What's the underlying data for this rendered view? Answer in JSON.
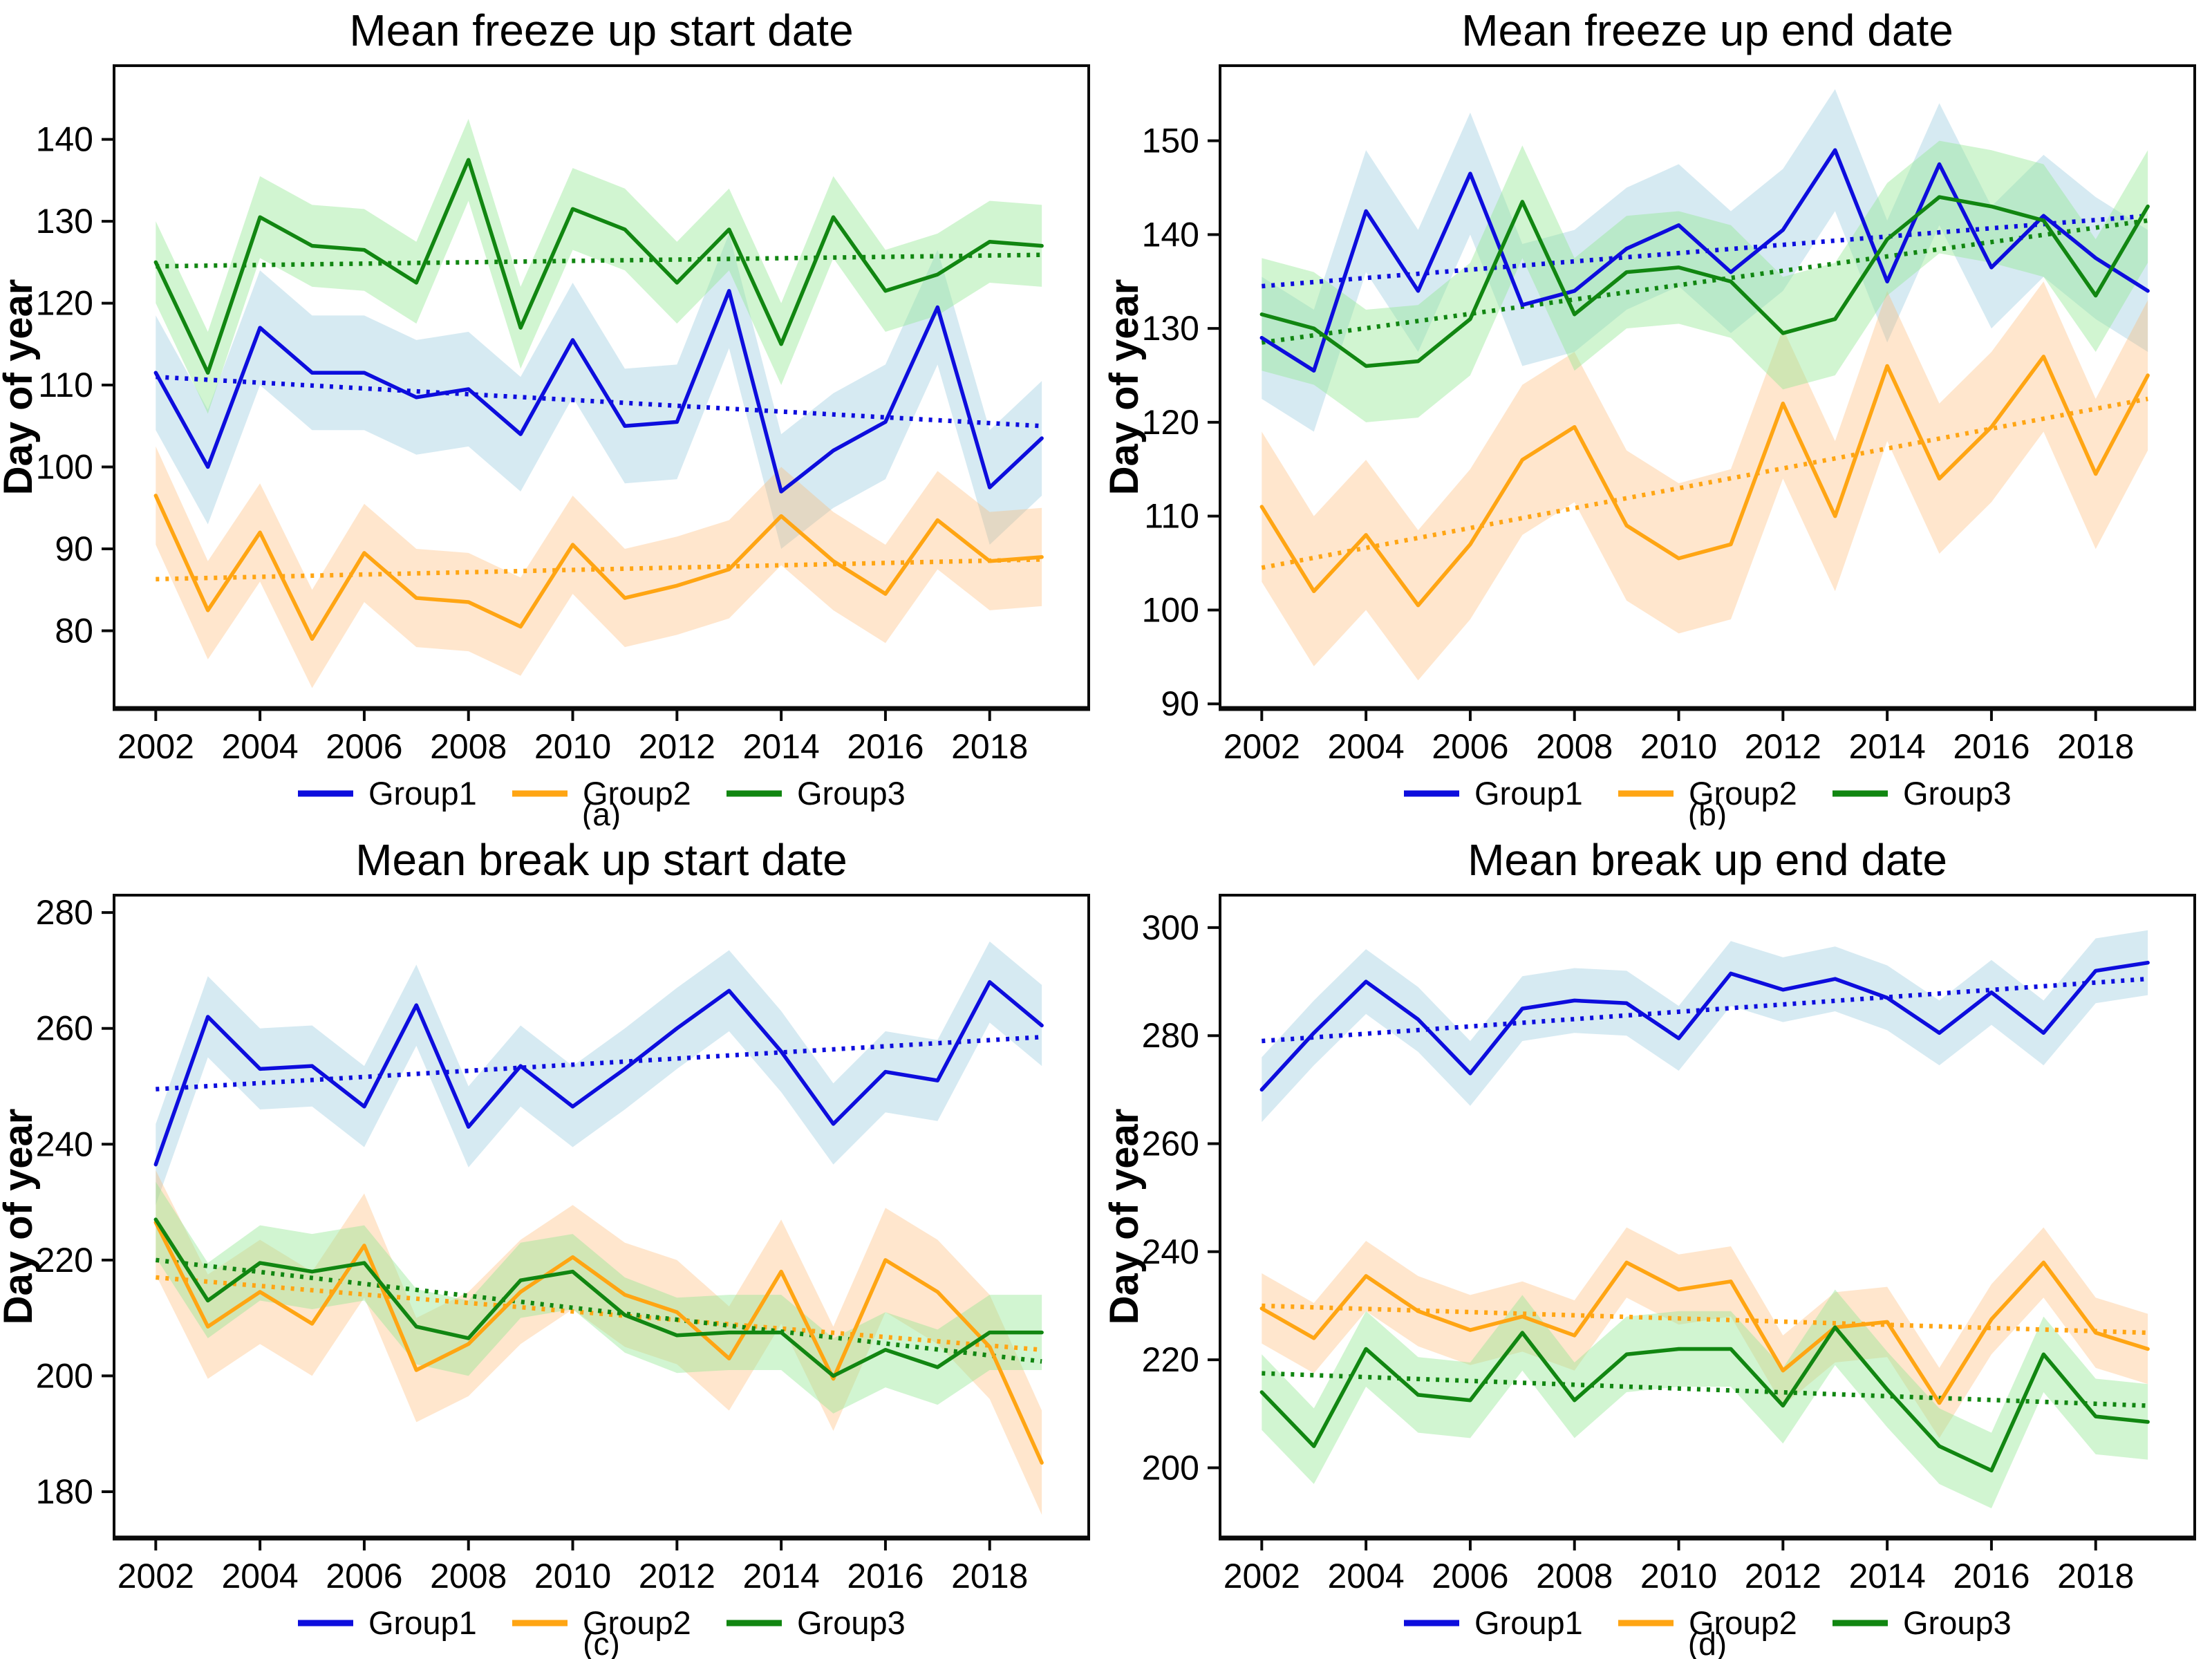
{
  "figure": {
    "background": "#ffffff",
    "ylabel": "Day of year",
    "legend_labels": [
      "Group1",
      "Group2",
      "Group3"
    ],
    "colors": {
      "group1": "#0d0ddd",
      "group2": "#ffa513",
      "group3": "#118611",
      "axis": "#0a0a0a",
      "band1": "rgba(173,214,230,0.50)",
      "band2": "rgba(255,178,102,0.33)",
      "band3": "rgba(146,230,146,0.42)"
    }
  },
  "chart_data": [
    {
      "id": "a",
      "type": "line",
      "title": "Mean freeze up start date",
      "caption": "(a)",
      "ylabel": "Day of year",
      "legend_position": "bottom",
      "grid": false,
      "x": [
        2002,
        2003,
        2004,
        2005,
        2006,
        2007,
        2008,
        2009,
        2010,
        2011,
        2012,
        2013,
        2014,
        2015,
        2016,
        2017,
        2018,
        2019
      ],
      "xticks": [
        2002,
        2004,
        2006,
        2008,
        2010,
        2012,
        2014,
        2016,
        2018
      ],
      "xlim": [
        2001.2,
        2019.9
      ],
      "yticks": [
        80,
        90,
        100,
        110,
        120,
        130,
        140
      ],
      "ylim": [
        70.5,
        149
      ],
      "series": [
        {
          "name": "Group1",
          "color": "#0d0ddd",
          "band_color": "rgba(173,214,230,0.50)",
          "band": 7,
          "trend": [
            111,
            105
          ],
          "values": [
            111.5,
            100,
            117,
            111.5,
            111.5,
            108.5,
            109.5,
            104,
            115.5,
            105,
            105.5,
            121.5,
            97,
            102,
            105.5,
            119.5,
            97.5,
            103.5
          ]
        },
        {
          "name": "Group2",
          "color": "#ffa513",
          "band_color": "rgba(255,178,102,0.33)",
          "band": 6,
          "trend": [
            86.3,
            88.7
          ],
          "values": [
            96.5,
            82.5,
            92,
            79,
            89.5,
            84,
            83.5,
            80.5,
            90.5,
            84,
            85.5,
            87.5,
            94,
            88.5,
            84.5,
            93.5,
            88.5,
            89
          ]
        },
        {
          "name": "Group3",
          "color": "#118611",
          "band_color": "rgba(146,230,146,0.42)",
          "band": 5,
          "trend": [
            124.5,
            125.9
          ],
          "values": [
            125,
            111.5,
            130.5,
            127,
            126.5,
            122.5,
            137.5,
            117,
            131.5,
            129,
            122.5,
            129,
            115,
            130.5,
            121.5,
            123.5,
            127.5,
            127
          ]
        }
      ]
    },
    {
      "id": "b",
      "type": "line",
      "title": "Mean freeze up end date",
      "caption": "(b)",
      "ylabel": "Day of year",
      "legend_position": "bottom",
      "grid": false,
      "x": [
        2002,
        2003,
        2004,
        2005,
        2006,
        2007,
        2008,
        2009,
        2010,
        2011,
        2012,
        2013,
        2014,
        2015,
        2016,
        2017,
        2018,
        2019
      ],
      "xticks": [
        2002,
        2004,
        2006,
        2008,
        2010,
        2012,
        2014,
        2016,
        2018
      ],
      "xlim": [
        2001.2,
        2019.9
      ],
      "yticks": [
        90,
        100,
        110,
        120,
        130,
        140,
        150
      ],
      "ylim": [
        89.5,
        158
      ],
      "series": [
        {
          "name": "Group1",
          "color": "#0d0ddd",
          "band_color": "rgba(173,214,230,0.50)",
          "band": 6.5,
          "trend": [
            134.5,
            142
          ],
          "values": [
            129,
            125.5,
            142.5,
            134,
            146.5,
            132.5,
            134,
            138.5,
            141,
            136,
            140.5,
            149,
            135,
            147.5,
            136.5,
            142,
            137.5,
            134
          ]
        },
        {
          "name": "Group2",
          "color": "#ffa513",
          "band_color": "rgba(255,178,102,0.33)",
          "band": 8,
          "trend": [
            104.5,
            122.5
          ],
          "values": [
            111,
            102,
            108,
            100.5,
            107,
            116,
            119.5,
            109,
            105.5,
            107,
            122,
            110,
            126,
            114,
            119.5,
            127,
            114.5,
            125
          ]
        },
        {
          "name": "Group3",
          "color": "#118611",
          "band_color": "rgba(146,230,146,0.42)",
          "band": 6,
          "trend": [
            128.5,
            141.5
          ],
          "values": [
            131.5,
            130,
            126,
            126.5,
            131,
            143.5,
            131.5,
            136,
            136.5,
            135,
            129.5,
            131,
            139.5,
            144,
            143,
            141.5,
            133.5,
            143
          ]
        }
      ]
    },
    {
      "id": "c",
      "type": "line",
      "title": "Mean break up start date",
      "caption": "(c)",
      "ylabel": "Day of year",
      "legend_position": "bottom",
      "grid": false,
      "x": [
        2002,
        2003,
        2004,
        2005,
        2006,
        2007,
        2008,
        2009,
        2010,
        2011,
        2012,
        2013,
        2014,
        2015,
        2016,
        2017,
        2018,
        2019
      ],
      "xticks": [
        2002,
        2004,
        2006,
        2008,
        2010,
        2012,
        2014,
        2016,
        2018
      ],
      "xlim": [
        2001.2,
        2019.9
      ],
      "yticks": [
        180,
        200,
        220,
        240,
        260,
        280
      ],
      "ylim": [
        172,
        283
      ],
      "series": [
        {
          "name": "Group1",
          "color": "#0d0ddd",
          "band_color": "rgba(173,214,230,0.50)",
          "band": 7,
          "trend": [
            249.5,
            258.5
          ],
          "values": [
            236.5,
            262,
            253,
            253.5,
            246.5,
            264,
            243,
            253.5,
            246.5,
            253,
            260,
            266.5,
            256,
            243.5,
            252.5,
            251,
            268,
            260.5
          ]
        },
        {
          "name": "Group2",
          "color": "#ffa513",
          "band_color": "rgba(255,178,102,0.33)",
          "band": 9,
          "trend": [
            217,
            204.5
          ],
          "values": [
            226.5,
            208.5,
            214.5,
            209,
            222.5,
            201,
            205.5,
            214.5,
            220.5,
            214,
            211,
            203,
            218,
            199.5,
            220,
            214.5,
            205,
            185
          ]
        },
        {
          "name": "Group3",
          "color": "#118611",
          "band_color": "rgba(146,230,146,0.42)",
          "band": 6.5,
          "trend": [
            220,
            202.5
          ],
          "values": [
            227,
            213,
            219.5,
            218,
            219.5,
            208.5,
            206.5,
            216.5,
            218,
            210.5,
            207,
            207.5,
            207.5,
            200,
            204.5,
            201.5,
            207.5,
            207.5
          ]
        }
      ]
    },
    {
      "id": "d",
      "type": "line",
      "title": "Mean break up end date",
      "caption": "(d)",
      "ylabel": "Day of year",
      "legend_position": "bottom",
      "grid": false,
      "x": [
        2002,
        2003,
        2004,
        2005,
        2006,
        2007,
        2008,
        2009,
        2010,
        2011,
        2012,
        2013,
        2014,
        2015,
        2016,
        2017,
        2018,
        2019
      ],
      "xticks": [
        2002,
        2004,
        2006,
        2008,
        2010,
        2012,
        2014,
        2016,
        2018
      ],
      "xlim": [
        2001.2,
        2019.9
      ],
      "yticks": [
        200,
        220,
        240,
        260,
        280,
        300
      ],
      "ylim": [
        187,
        306
      ],
      "series": [
        {
          "name": "Group1",
          "color": "#0d0ddd",
          "band_color": "rgba(173,214,230,0.50)",
          "band": 6,
          "trend": [
            279,
            290.5
          ],
          "values": [
            270,
            280.5,
            290,
            283,
            273,
            285,
            286.5,
            286,
            279.5,
            291.5,
            288.5,
            290.5,
            287,
            280.5,
            288,
            280.5,
            292,
            293.5
          ]
        },
        {
          "name": "Group2",
          "color": "#ffa513",
          "band_color": "rgba(255,178,102,0.33)",
          "band": 6.5,
          "trend": [
            230,
            225
          ],
          "values": [
            229.5,
            224,
            235.5,
            229,
            225.5,
            228,
            224.5,
            238,
            233,
            234.5,
            218,
            226,
            227,
            212,
            227.5,
            238,
            225,
            222
          ]
        },
        {
          "name": "Group3",
          "color": "#118611",
          "band_color": "rgba(146,230,146,0.42)",
          "band": 7,
          "trend": [
            217.5,
            211.5
          ],
          "values": [
            214,
            204,
            222,
            213.5,
            212.5,
            225,
            212.5,
            221,
            222,
            222,
            211.5,
            226,
            214.5,
            204,
            199.5,
            221,
            209.5,
            208.5
          ]
        }
      ]
    }
  ]
}
